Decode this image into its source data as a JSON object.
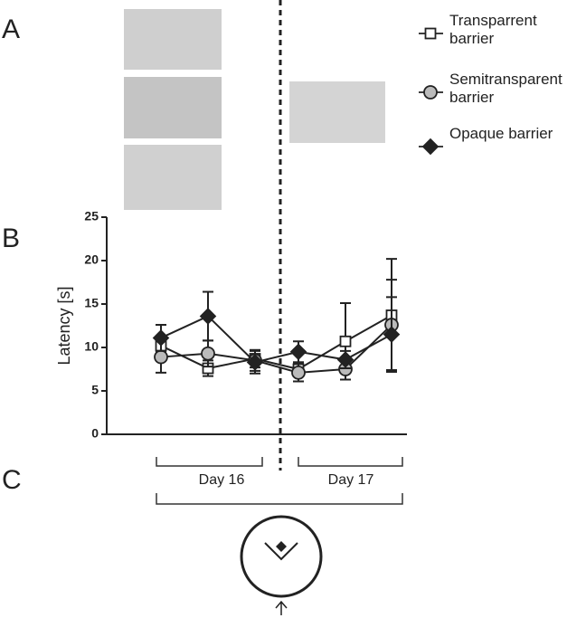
{
  "panels": [
    "A",
    "B",
    "C"
  ],
  "groups": [
    "Day 16",
    "Day 17"
  ],
  "chart_data": {
    "type": "line",
    "y_label": "Latency [s]",
    "categories": [
      null,
      null,
      null,
      null,
      null,
      null
    ],
    "ylim": [
      0,
      25
    ],
    "yticks": [
      0,
      5,
      10,
      15,
      20,
      25
    ],
    "series": [
      {
        "name": "Transparrent barrier",
        "color": "#ffffff",
        "marker": "square",
        "values": [
          10.2,
          7.6,
          8.7,
          7.5,
          10.7,
          13.7
        ],
        "errors": [
          0.8,
          0.9,
          1.0,
          0.8,
          4.4,
          6.5
        ]
      },
      {
        "name": "Semitransparent barrier",
        "color": "#bbbbbb",
        "marker": "circle",
        "values": [
          8.9,
          9.3,
          8.5,
          7.1,
          7.5,
          12.6
        ],
        "errors": [
          1.8,
          1.5,
          1.2,
          1.0,
          1.2,
          5.2
        ]
      },
      {
        "name": "Opaque barrier",
        "color": "#222222",
        "marker": "diamond",
        "values": [
          11.1,
          13.6,
          8.3,
          9.5,
          8.6,
          11.5
        ],
        "errors": [
          1.5,
          2.8,
          1.3,
          1.2,
          1.0,
          4.3
        ]
      }
    ]
  }
}
